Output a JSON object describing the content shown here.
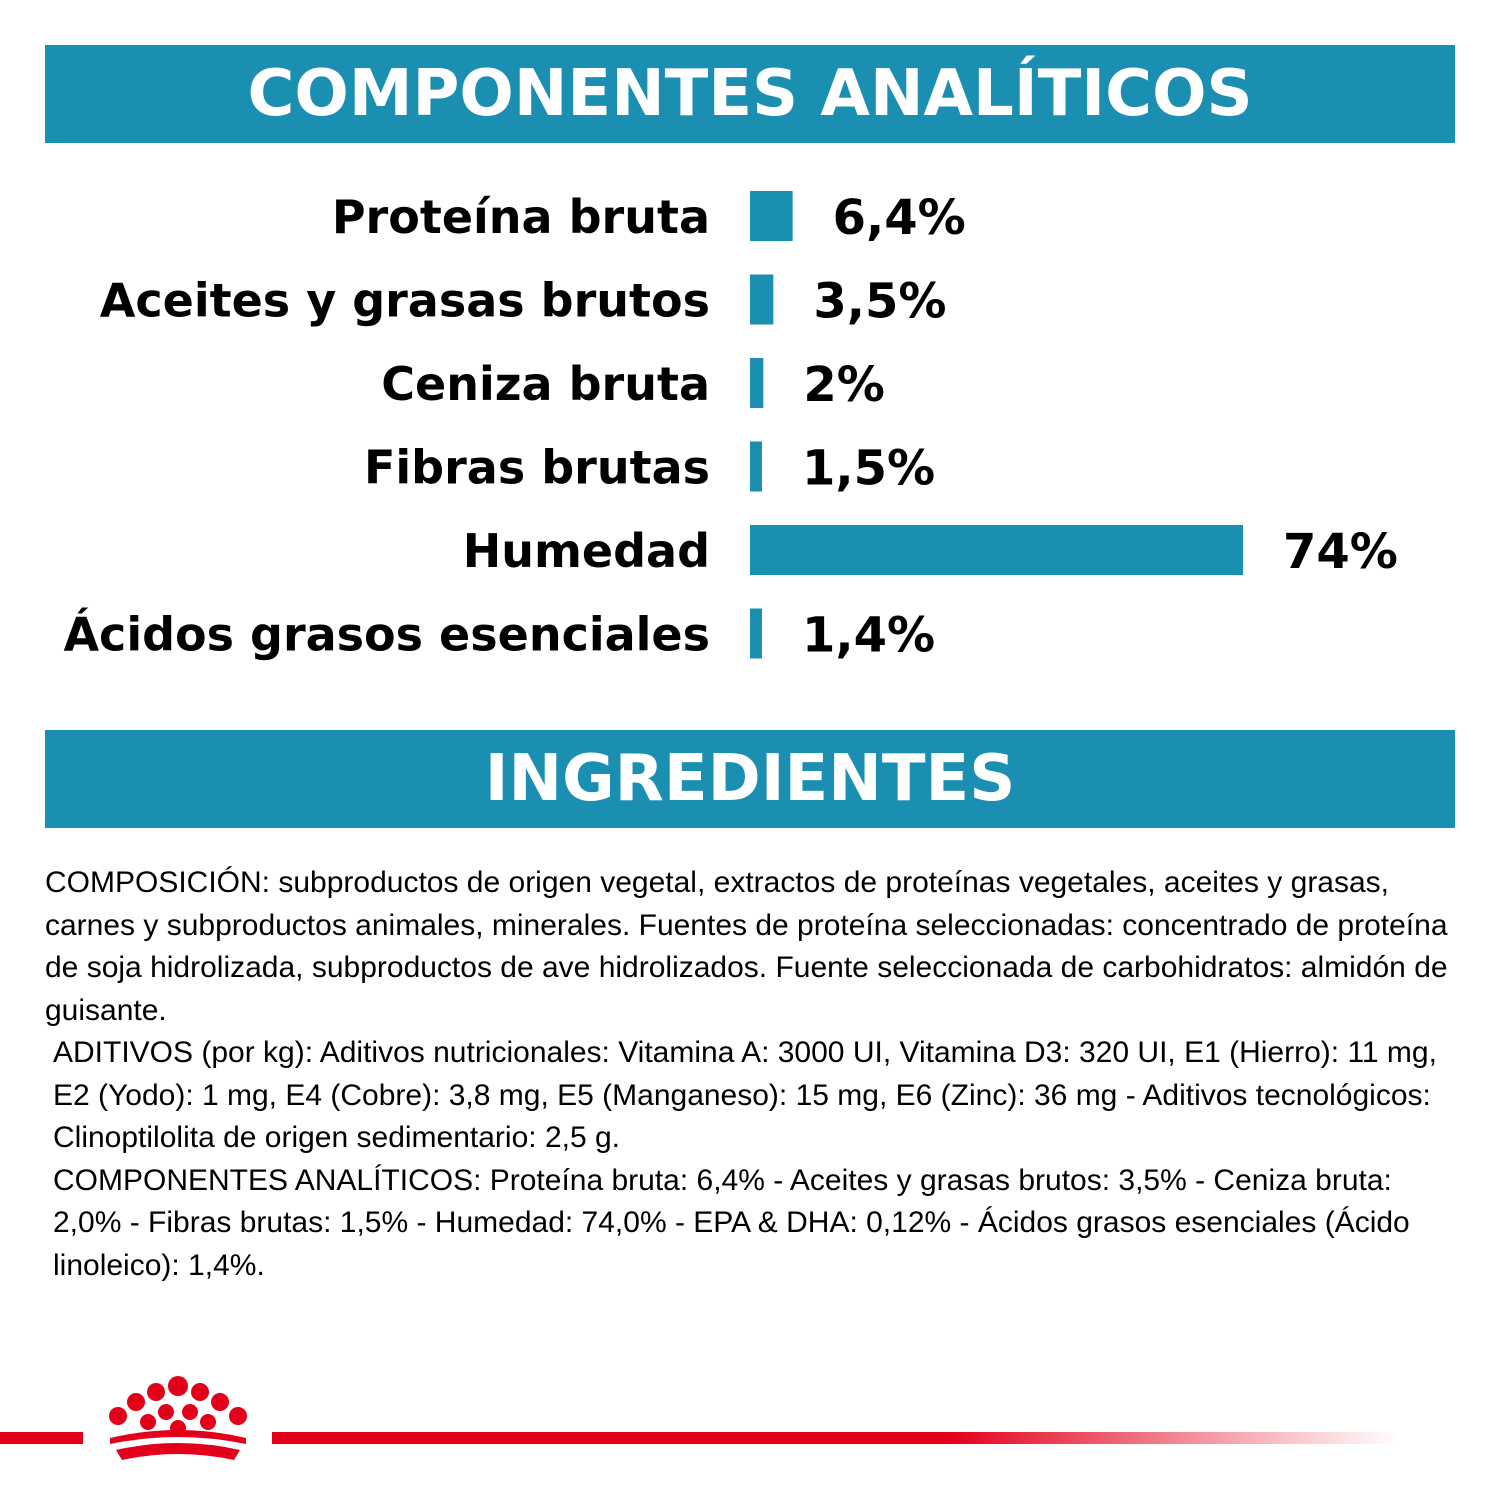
{
  "header": {
    "title": "COMPONENTES ANALÍTICOS"
  },
  "chart_data": {
    "type": "bar",
    "orientation": "horizontal",
    "categories": [
      "Proteína bruta",
      "Aceites y grasas brutos",
      "Ceniza bruta",
      "Fibras brutas",
      "Humedad",
      "Ácidos grasos esenciales"
    ],
    "values": [
      6.4,
      3.5,
      2,
      1.5,
      74,
      1.4
    ],
    "value_labels": [
      "6,4%",
      "3,5%",
      "2%",
      "1,5%",
      "74%",
      "1,4%"
    ],
    "bar_color": "#1b8fb1",
    "xlim": [
      0,
      74
    ],
    "grid": false,
    "legend": "none"
  },
  "ingredients": {
    "title": "INGREDIENTES",
    "composition": "COMPOSICIÓN: subproductos de origen vegetal, extractos de proteínas vegetales, aceites y grasas, carnes y subproductos animales, minerales. Fuentes de proteína seleccionadas: concentrado de proteína de soja hidrolizada, subproductos de ave hidrolizados. Fuente seleccionada de carbohidratos: almidón de guisante.",
    "additives": "ADITIVOS (por kg): Aditivos nutricionales: Vitamina A: 3000 UI, Vitamina D3: 320 UI, E1 (Hierro): 11 mg, E2 (Yodo): 1 mg, E4 (Cobre): 3,8 mg, E5 (Manganeso): 15 mg, E6 (Zinc): 36 mg - Aditivos tecnológicos: Clinoptilolita de origen sedimentario: 2,5 g.",
    "analytical": "COMPONENTES ANALÍTICOS: Proteína bruta: 6,4% - Aceites y grasas brutos: 3,5% - Ceniza bruta: 2,0% - Fibras brutas: 1,5% - Humedad: 74,0% - EPA & DHA: 0,12% - Ácidos grasos esenciales (Ácido linoleico): 1,4%."
  },
  "colors": {
    "accent": "#1b8fb1",
    "brand_red": "#e3001b"
  },
  "footer": {
    "logo_icon": "royal-canin-crown-icon"
  }
}
